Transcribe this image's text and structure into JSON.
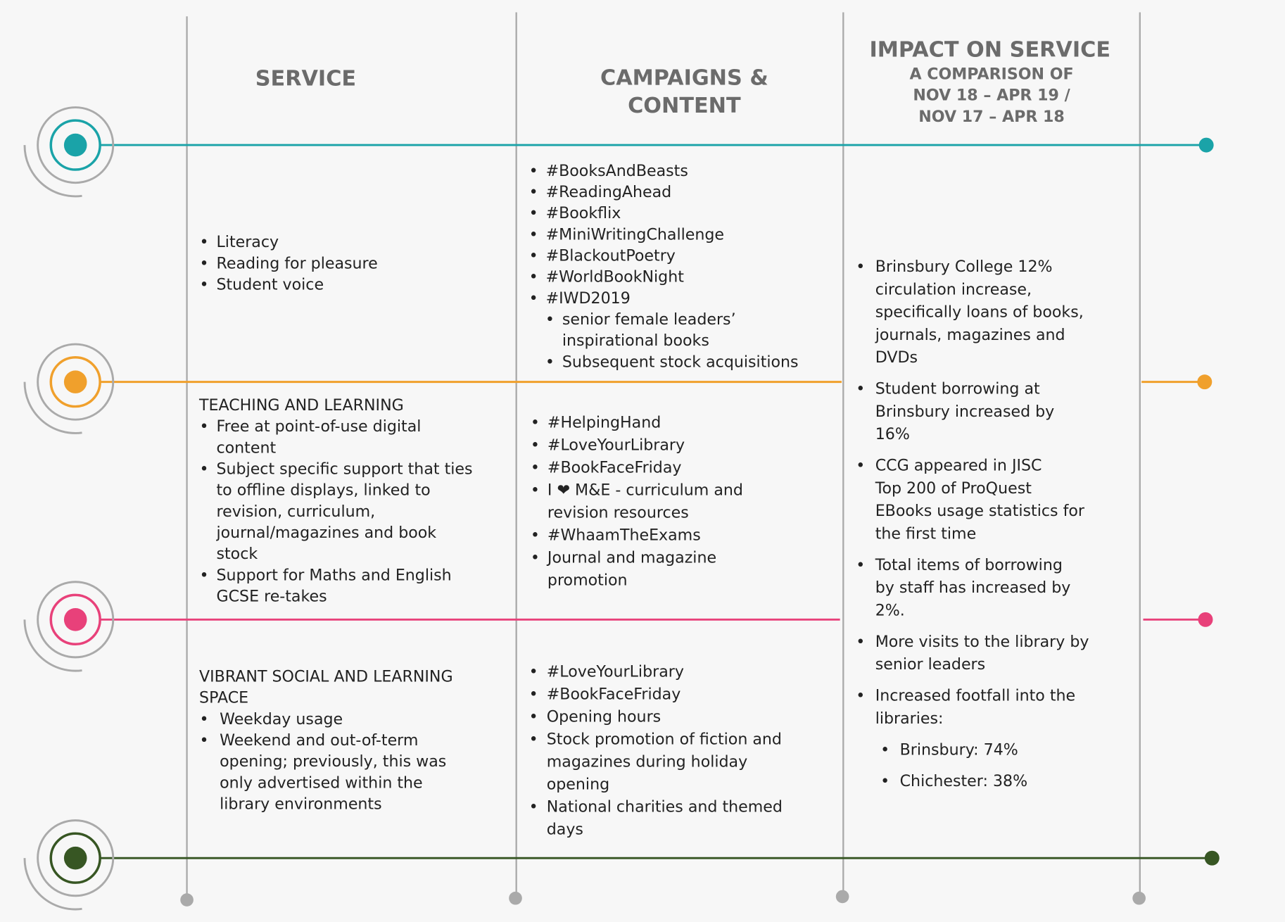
{
  "headers": {
    "service": "SERVICE",
    "campaigns": [
      "CAMPAIGNS &",
      "CONTENT"
    ],
    "impact": {
      "title": "IMPACT ON SERVICE",
      "subtitle": [
        "A COMPARISON OF",
        "NOV 18 – APR 19 /",
        "NOV 17 – APR 18"
      ]
    }
  },
  "rows": [
    {
      "service": {
        "items": [
          {
            "lines": [
              "Literacy"
            ]
          },
          {
            "lines": [
              "Reading for pleasure"
            ]
          },
          {
            "lines": [
              "Student voice"
            ]
          }
        ]
      },
      "campaigns": {
        "items": [
          {
            "lines": [
              "#BooksAndBeasts"
            ]
          },
          {
            "lines": [
              "#ReadingAhead"
            ]
          },
          {
            "lines": [
              "#Bookflix"
            ]
          },
          {
            "lines": [
              "#MiniWritingChallenge"
            ]
          },
          {
            "lines": [
              "#BlackoutPoetry"
            ]
          },
          {
            "lines": [
              "#WorldBookNight"
            ]
          },
          {
            "lines": [
              "#IWD2019"
            ],
            "sub": [
              {
                "lines": [
                  "senior female leaders’",
                  "inspirational books"
                ]
              },
              {
                "lines": [
                  "Subsequent stock acquisitions"
                ]
              }
            ]
          }
        ]
      }
    },
    {
      "service": {
        "heading": [
          "TEACHING AND LEARNING"
        ],
        "items": [
          {
            "lines": [
              "Free at point-of-use digital",
              "content"
            ]
          },
          {
            "lines": [
              "Subject specific support that ties",
              "to offline displays, linked to",
              "revision, curriculum,",
              "journal/magazines and book",
              "stock"
            ]
          },
          {
            "lines": [
              "Support for Maths and English",
              "GCSE re-takes"
            ]
          }
        ]
      },
      "campaigns": {
        "items": [
          {
            "lines": [
              "#HelpingHand"
            ]
          },
          {
            "lines": [
              "#LoveYourLibrary"
            ]
          },
          {
            "lines": [
              "#BookFaceFriday"
            ]
          },
          {
            "lines": [
              "I ❤ M&E - curriculum and",
              "revision resources"
            ]
          },
          {
            "lines": [
              "#WhaamTheExams"
            ]
          },
          {
            "lines": [
              "Journal and magazine",
              "promotion"
            ]
          }
        ]
      }
    },
    {
      "service": {
        "heading": [
          "VIBRANT SOCIAL AND LEARNING",
          "SPACE"
        ],
        "items": [
          {
            "lines": [
              "Weekday usage"
            ]
          },
          {
            "lines": [
              "Weekend and out-of-term",
              "opening; previously, this was",
              "only advertised within the",
              "library environments"
            ]
          }
        ]
      },
      "campaigns": {
        "items": [
          {
            "lines": [
              "#LoveYourLibrary"
            ]
          },
          {
            "lines": [
              "#BookFaceFriday"
            ]
          },
          {
            "lines": [
              "Opening hours"
            ]
          },
          {
            "lines": [
              "Stock promotion of fiction and",
              "magazines during holiday",
              "opening"
            ]
          },
          {
            "lines": [
              "National charities and themed",
              "days"
            ]
          }
        ]
      }
    }
  ],
  "impact": {
    "items": [
      {
        "lines": [
          "Brinsbury College 12%",
          "circulation increase,",
          "specifically loans of books,",
          "journals, magazines and",
          "DVDs"
        ]
      },
      {
        "lines": [
          "Student borrowing at",
          "Brinsbury increased by",
          "16%"
        ]
      },
      {
        "lines": [
          "CCG appeared in JISC",
          "Top 200 of ProQuest",
          "EBooks usage statistics for",
          "the first time"
        ]
      },
      {
        "lines": [
          "Total items of borrowing",
          "by staff has increased by",
          "2%."
        ]
      },
      {
        "lines": [
          "More visits to the library by",
          "senior leaders"
        ]
      },
      {
        "lines": [
          "Increased footfall into the",
          "libraries:"
        ],
        "sub": [
          {
            "lines": [
              "Brinsbury: 74%"
            ]
          },
          {
            "lines": [
              "Chichester: 38%"
            ]
          }
        ]
      }
    ]
  }
}
